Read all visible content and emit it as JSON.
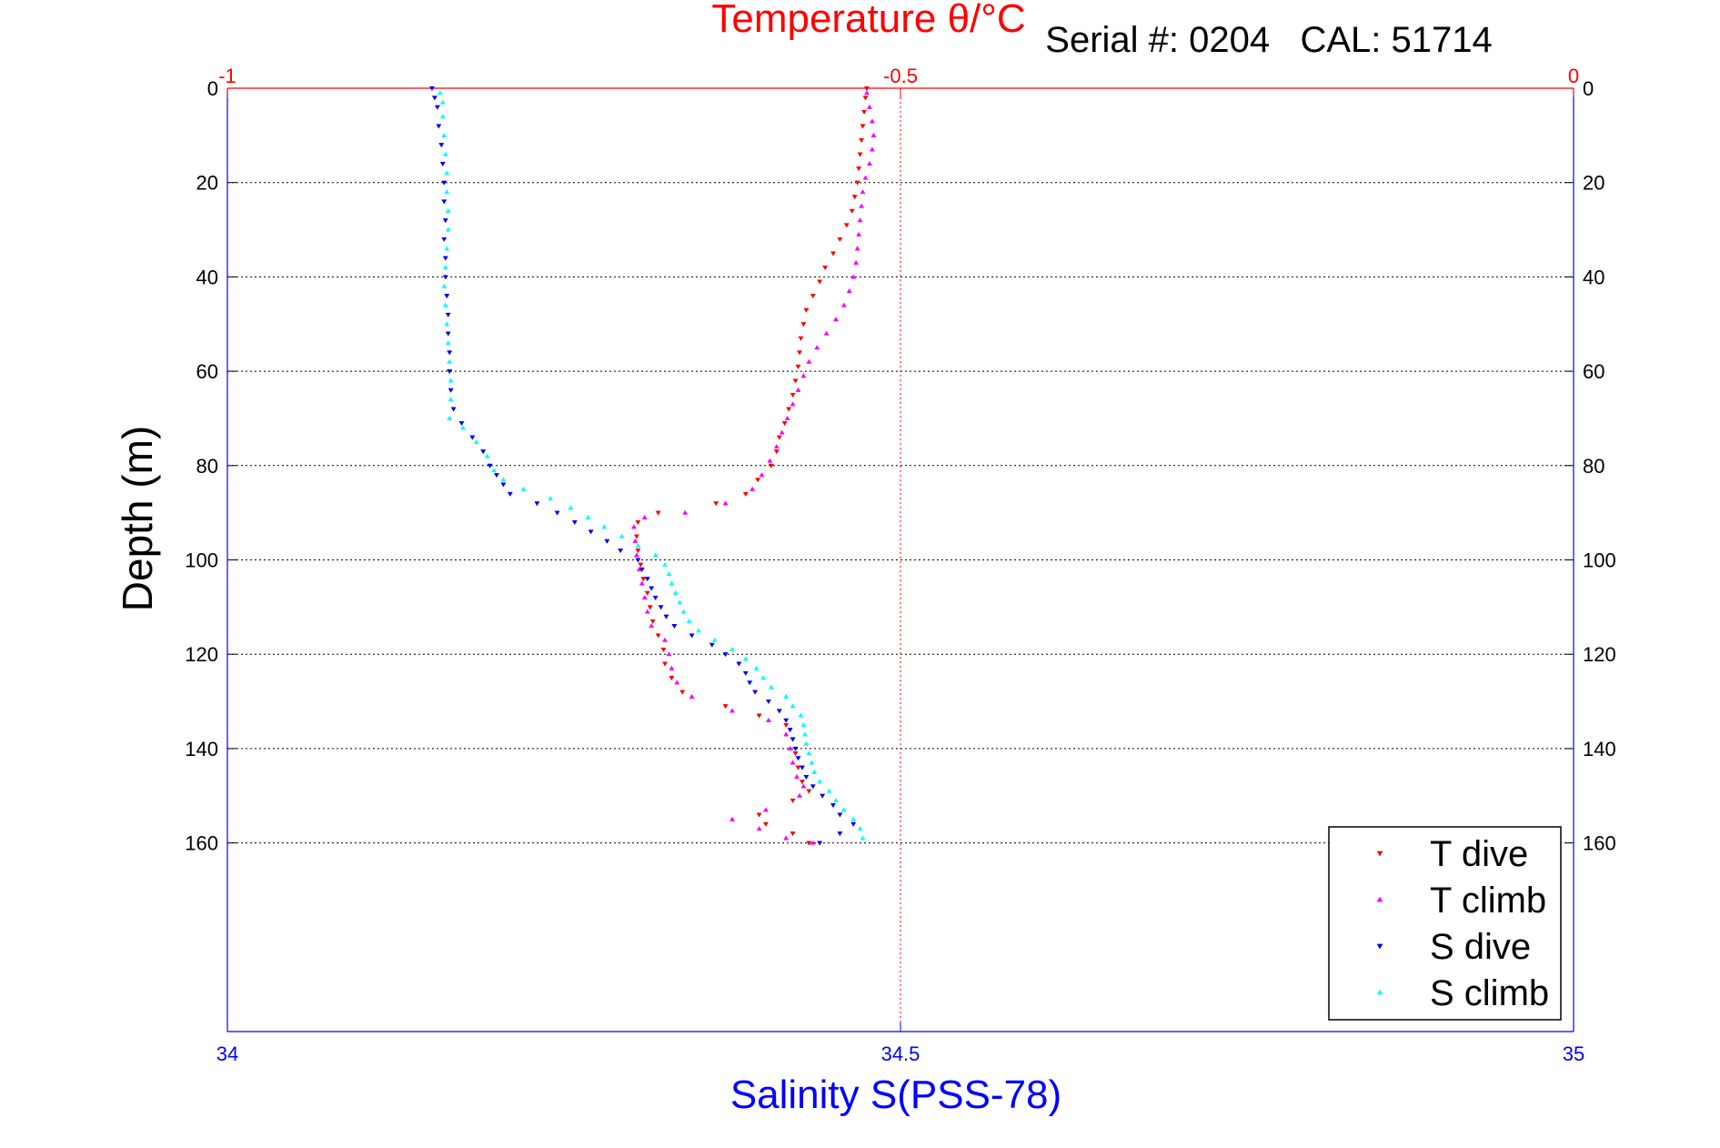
{
  "chart_data": {
    "type": "scatter",
    "title_top": "Temperature θ/°C",
    "subtitle": "Serial #: 0204   CAL: 51714",
    "xlabel_bottom": "Salinity S(PSS-78)",
    "ylabel": "Depth (m)",
    "ylim": [
      0,
      200
    ],
    "y_reversed": true,
    "y_ticks": [
      "0",
      "20",
      "40",
      "60",
      "80",
      "100",
      "120",
      "140",
      "160"
    ],
    "y_tick_values": [
      0,
      20,
      40,
      60,
      80,
      100,
      120,
      140,
      160
    ],
    "top_axis": {
      "label": "Temperature",
      "range": [
        -1,
        0
      ],
      "ticks": [
        "-1",
        "-0.5",
        "0"
      ],
      "tick_values": [
        -1,
        -0.5,
        0
      ],
      "color": "#ff0000"
    },
    "bottom_axis": {
      "label": "Salinity",
      "range": [
        34,
        35
      ],
      "ticks": [
        "34",
        "34.5",
        "35"
      ],
      "tick_values": [
        34,
        34.5,
        35
      ],
      "color": "#0000ff"
    },
    "grid": true,
    "legend_position": "bottom-right",
    "series": [
      {
        "name": "T dive",
        "axis": "top",
        "color": "#ff0000",
        "marker": "triangle-down",
        "points": [
          [
            -0.525,
            0
          ],
          [
            -0.526,
            2
          ],
          [
            -0.527,
            5
          ],
          [
            -0.528,
            8
          ],
          [
            -0.529,
            11
          ],
          [
            -0.53,
            14
          ],
          [
            -0.531,
            17
          ],
          [
            -0.532,
            20
          ],
          [
            -0.534,
            23
          ],
          [
            -0.536,
            26
          ],
          [
            -0.54,
            29
          ],
          [
            -0.545,
            32
          ],
          [
            -0.55,
            35
          ],
          [
            -0.556,
            38
          ],
          [
            -0.56,
            41
          ],
          [
            -0.565,
            44
          ],
          [
            -0.57,
            47
          ],
          [
            -0.572,
            50
          ],
          [
            -0.574,
            53
          ],
          [
            -0.575,
            56
          ],
          [
            -0.576,
            59
          ],
          [
            -0.578,
            62
          ],
          [
            -0.58,
            65
          ],
          [
            -0.583,
            68
          ],
          [
            -0.586,
            71
          ],
          [
            -0.59,
            74
          ],
          [
            -0.592,
            77
          ],
          [
            -0.596,
            80
          ],
          [
            -0.606,
            83
          ],
          [
            -0.615,
            86
          ],
          [
            -0.637,
            88
          ],
          [
            -0.68,
            90
          ],
          [
            -0.695,
            92
          ],
          [
            -0.696,
            95
          ],
          [
            -0.695,
            98
          ],
          [
            -0.693,
            101
          ],
          [
            -0.691,
            104
          ],
          [
            -0.688,
            107
          ],
          [
            -0.686,
            110
          ],
          [
            -0.684,
            113
          ],
          [
            -0.68,
            116
          ],
          [
            -0.676,
            119
          ],
          [
            -0.675,
            122
          ],
          [
            -0.67,
            125
          ],
          [
            -0.662,
            128
          ],
          [
            -0.63,
            131
          ],
          [
            -0.605,
            133
          ],
          [
            -0.585,
            135
          ],
          [
            -0.58,
            138
          ],
          [
            -0.578,
            141
          ],
          [
            -0.576,
            144
          ],
          [
            -0.573,
            147
          ],
          [
            -0.568,
            149
          ],
          [
            -0.58,
            151
          ],
          [
            -0.605,
            154
          ],
          [
            -0.6,
            156
          ],
          [
            -0.58,
            158
          ],
          [
            -0.568,
            160
          ]
        ]
      },
      {
        "name": "T climb",
        "axis": "top",
        "color": "#ff00ff",
        "marker": "triangle-up",
        "points": [
          [
            -0.525,
            1
          ],
          [
            -0.523,
            4
          ],
          [
            -0.521,
            7
          ],
          [
            -0.52,
            10
          ],
          [
            -0.521,
            13
          ],
          [
            -0.523,
            16
          ],
          [
            -0.526,
            19
          ],
          [
            -0.528,
            22
          ],
          [
            -0.529,
            25
          ],
          [
            -0.53,
            28
          ],
          [
            -0.531,
            31
          ],
          [
            -0.532,
            34
          ],
          [
            -0.533,
            37
          ],
          [
            -0.535,
            40
          ],
          [
            -0.538,
            43
          ],
          [
            -0.542,
            46
          ],
          [
            -0.548,
            49
          ],
          [
            -0.555,
            52
          ],
          [
            -0.562,
            55
          ],
          [
            -0.568,
            58
          ],
          [
            -0.572,
            61
          ],
          [
            -0.576,
            64
          ],
          [
            -0.58,
            67
          ],
          [
            -0.584,
            70
          ],
          [
            -0.588,
            73
          ],
          [
            -0.592,
            76
          ],
          [
            -0.597,
            79
          ],
          [
            -0.603,
            82
          ],
          [
            -0.61,
            85
          ],
          [
            -0.63,
            88
          ],
          [
            -0.66,
            90
          ],
          [
            -0.69,
            91
          ],
          [
            -0.698,
            93
          ],
          [
            -0.697,
            96
          ],
          [
            -0.696,
            99
          ],
          [
            -0.694,
            102
          ],
          [
            -0.692,
            105
          ],
          [
            -0.69,
            108
          ],
          [
            -0.688,
            111
          ],
          [
            -0.685,
            114
          ],
          [
            -0.675,
            117
          ],
          [
            -0.672,
            120
          ],
          [
            -0.67,
            123
          ],
          [
            -0.666,
            126
          ],
          [
            -0.655,
            129
          ],
          [
            -0.625,
            132
          ],
          [
            -0.598,
            134
          ],
          [
            -0.585,
            137
          ],
          [
            -0.582,
            140
          ],
          [
            -0.58,
            143
          ],
          [
            -0.577,
            146
          ],
          [
            -0.572,
            148
          ],
          [
            -0.575,
            150
          ],
          [
            -0.6,
            153
          ],
          [
            -0.625,
            155
          ],
          [
            -0.605,
            157
          ],
          [
            -0.585,
            159
          ],
          [
            -0.565,
            160
          ]
        ]
      },
      {
        "name": "S dive",
        "axis": "bottom",
        "color": "#0000ff",
        "marker": "triangle-down",
        "points": [
          [
            34.152,
            0
          ],
          [
            34.154,
            2
          ],
          [
            34.156,
            4
          ],
          [
            34.157,
            8
          ],
          [
            34.159,
            12
          ],
          [
            34.16,
            16
          ],
          [
            34.161,
            20
          ],
          [
            34.161,
            24
          ],
          [
            34.162,
            28
          ],
          [
            34.161,
            32
          ],
          [
            34.162,
            36
          ],
          [
            34.162,
            40
          ],
          [
            34.163,
            44
          ],
          [
            34.164,
            48
          ],
          [
            34.164,
            52
          ],
          [
            34.165,
            56
          ],
          [
            34.165,
            60
          ],
          [
            34.166,
            64
          ],
          [
            34.168,
            68
          ],
          [
            34.174,
            71
          ],
          [
            34.182,
            74
          ],
          [
            34.19,
            77
          ],
          [
            34.195,
            80
          ],
          [
            34.2,
            82
          ],
          [
            34.205,
            84
          ],
          [
            34.21,
            86
          ],
          [
            34.23,
            88
          ],
          [
            34.245,
            90
          ],
          [
            34.258,
            92
          ],
          [
            34.27,
            94
          ],
          [
            34.282,
            96
          ],
          [
            34.292,
            98
          ],
          [
            34.305,
            100
          ],
          [
            34.308,
            102
          ],
          [
            34.312,
            104
          ],
          [
            34.315,
            106
          ],
          [
            34.318,
            108
          ],
          [
            34.322,
            110
          ],
          [
            34.326,
            112
          ],
          [
            34.332,
            114
          ],
          [
            34.345,
            116
          ],
          [
            34.36,
            118
          ],
          [
            34.37,
            120
          ],
          [
            34.38,
            122
          ],
          [
            34.385,
            124
          ],
          [
            34.388,
            126
          ],
          [
            34.392,
            128
          ],
          [
            34.402,
            130
          ],
          [
            34.41,
            132
          ],
          [
            34.415,
            134
          ],
          [
            34.418,
            136
          ],
          [
            34.42,
            138
          ],
          [
            34.422,
            140
          ],
          [
            34.424,
            142
          ],
          [
            34.427,
            144
          ],
          [
            34.43,
            146
          ],
          [
            34.435,
            148
          ],
          [
            34.442,
            150
          ],
          [
            34.45,
            152
          ],
          [
            34.455,
            154
          ],
          [
            34.465,
            156
          ],
          [
            34.455,
            158
          ],
          [
            34.44,
            160
          ]
        ]
      },
      {
        "name": "S climb",
        "axis": "bottom",
        "color": "#00ffff",
        "marker": "triangle-up",
        "points": [
          [
            34.158,
            1
          ],
          [
            34.16,
            3
          ],
          [
            34.16,
            6
          ],
          [
            34.161,
            10
          ],
          [
            34.162,
            14
          ],
          [
            34.163,
            18
          ],
          [
            34.163,
            22
          ],
          [
            34.164,
            26
          ],
          [
            34.164,
            30
          ],
          [
            34.163,
            34
          ],
          [
            34.162,
            38
          ],
          [
            34.161,
            42
          ],
          [
            34.162,
            46
          ],
          [
            34.163,
            50
          ],
          [
            34.164,
            54
          ],
          [
            34.165,
            58
          ],
          [
            34.166,
            62
          ],
          [
            34.166,
            66
          ],
          [
            34.165,
            70
          ],
          [
            34.175,
            72
          ],
          [
            34.185,
            75
          ],
          [
            34.193,
            78
          ],
          [
            34.198,
            81
          ],
          [
            34.205,
            83
          ],
          [
            34.22,
            85
          ],
          [
            34.24,
            87
          ],
          [
            34.255,
            89
          ],
          [
            34.268,
            91
          ],
          [
            34.28,
            93
          ],
          [
            34.293,
            95
          ],
          [
            34.305,
            97
          ],
          [
            34.318,
            99
          ],
          [
            34.325,
            101
          ],
          [
            34.328,
            103
          ],
          [
            34.33,
            105
          ],
          [
            34.333,
            107
          ],
          [
            34.336,
            109
          ],
          [
            34.339,
            111
          ],
          [
            34.343,
            113
          ],
          [
            34.35,
            115
          ],
          [
            34.362,
            117
          ],
          [
            34.375,
            119
          ],
          [
            34.385,
            121
          ],
          [
            34.393,
            123
          ],
          [
            34.398,
            125
          ],
          [
            34.404,
            127
          ],
          [
            34.415,
            129
          ],
          [
            34.42,
            131
          ],
          [
            34.426,
            133
          ],
          [
            34.428,
            135
          ],
          [
            34.429,
            137
          ],
          [
            34.43,
            139
          ],
          [
            34.432,
            141
          ],
          [
            34.434,
            143
          ],
          [
            34.436,
            145
          ],
          [
            34.44,
            147
          ],
          [
            34.447,
            149
          ],
          [
            34.452,
            151
          ],
          [
            34.458,
            153
          ],
          [
            34.465,
            155
          ],
          [
            34.47,
            157
          ],
          [
            34.472,
            159
          ]
        ]
      }
    ]
  }
}
